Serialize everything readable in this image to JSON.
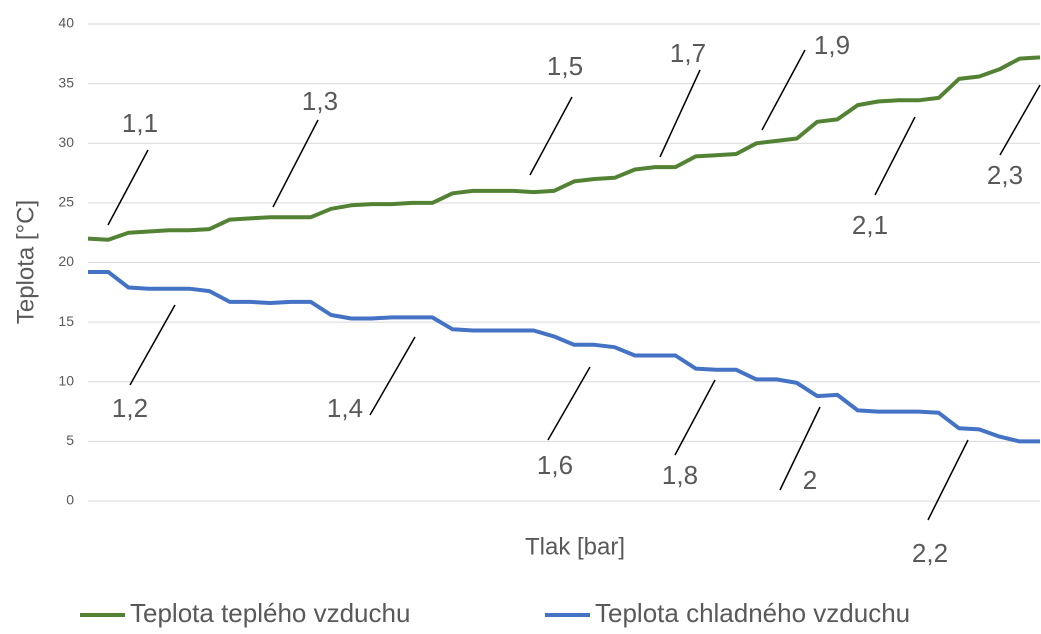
{
  "chart_data": {
    "type": "line",
    "x_label": "Tlak [bar]",
    "y_label": "Teplota [°C]",
    "ylim": [
      0,
      40
    ],
    "yticks": [
      0,
      5,
      10,
      15,
      20,
      25,
      30,
      35,
      40
    ],
    "grid": true,
    "legend": "bottom",
    "series": [
      {
        "name": "Teplota teplého vzduchu",
        "color": "#548235",
        "values": [
          22,
          21.9,
          22.5,
          22.6,
          22.7,
          22.7,
          22.8,
          23.6,
          23.7,
          23.8,
          23.8,
          23.8,
          24.5,
          24.8,
          24.9,
          24.9,
          25,
          25,
          25.8,
          26,
          26,
          26,
          25.9,
          26,
          26.8,
          27,
          27.1,
          27.8,
          28,
          28,
          28.9,
          29,
          29.1,
          30,
          30.2,
          30.4,
          31.8,
          32,
          33.2,
          33.5,
          33.6,
          33.6,
          33.8,
          35.4,
          35.6,
          36.2,
          37.1,
          37.2
        ]
      },
      {
        "name": "Teplota chladného vzduchu",
        "color": "#4472c4",
        "values": [
          19.2,
          19.2,
          17.9,
          17.8,
          17.8,
          17.8,
          17.6,
          16.7,
          16.7,
          16.6,
          16.7,
          16.7,
          15.6,
          15.3,
          15.3,
          15.4,
          15.4,
          15.4,
          14.4,
          14.3,
          14.3,
          14.3,
          14.3,
          13.8,
          13.1,
          13.1,
          12.9,
          12.2,
          12.2,
          12.2,
          11.1,
          11,
          11,
          10.2,
          10.2,
          9.9,
          8.8,
          8.9,
          7.6,
          7.5,
          7.5,
          7.5,
          7.4,
          6.1,
          6,
          5.4,
          5,
          5
        ]
      }
    ],
    "annotations": [
      "1,1",
      "1,2",
      "1,3",
      "1,4",
      "1,5",
      "1,6",
      "1,7",
      "1,8",
      "1,9",
      "2",
      "2,1",
      "2,2",
      "2,3"
    ]
  }
}
